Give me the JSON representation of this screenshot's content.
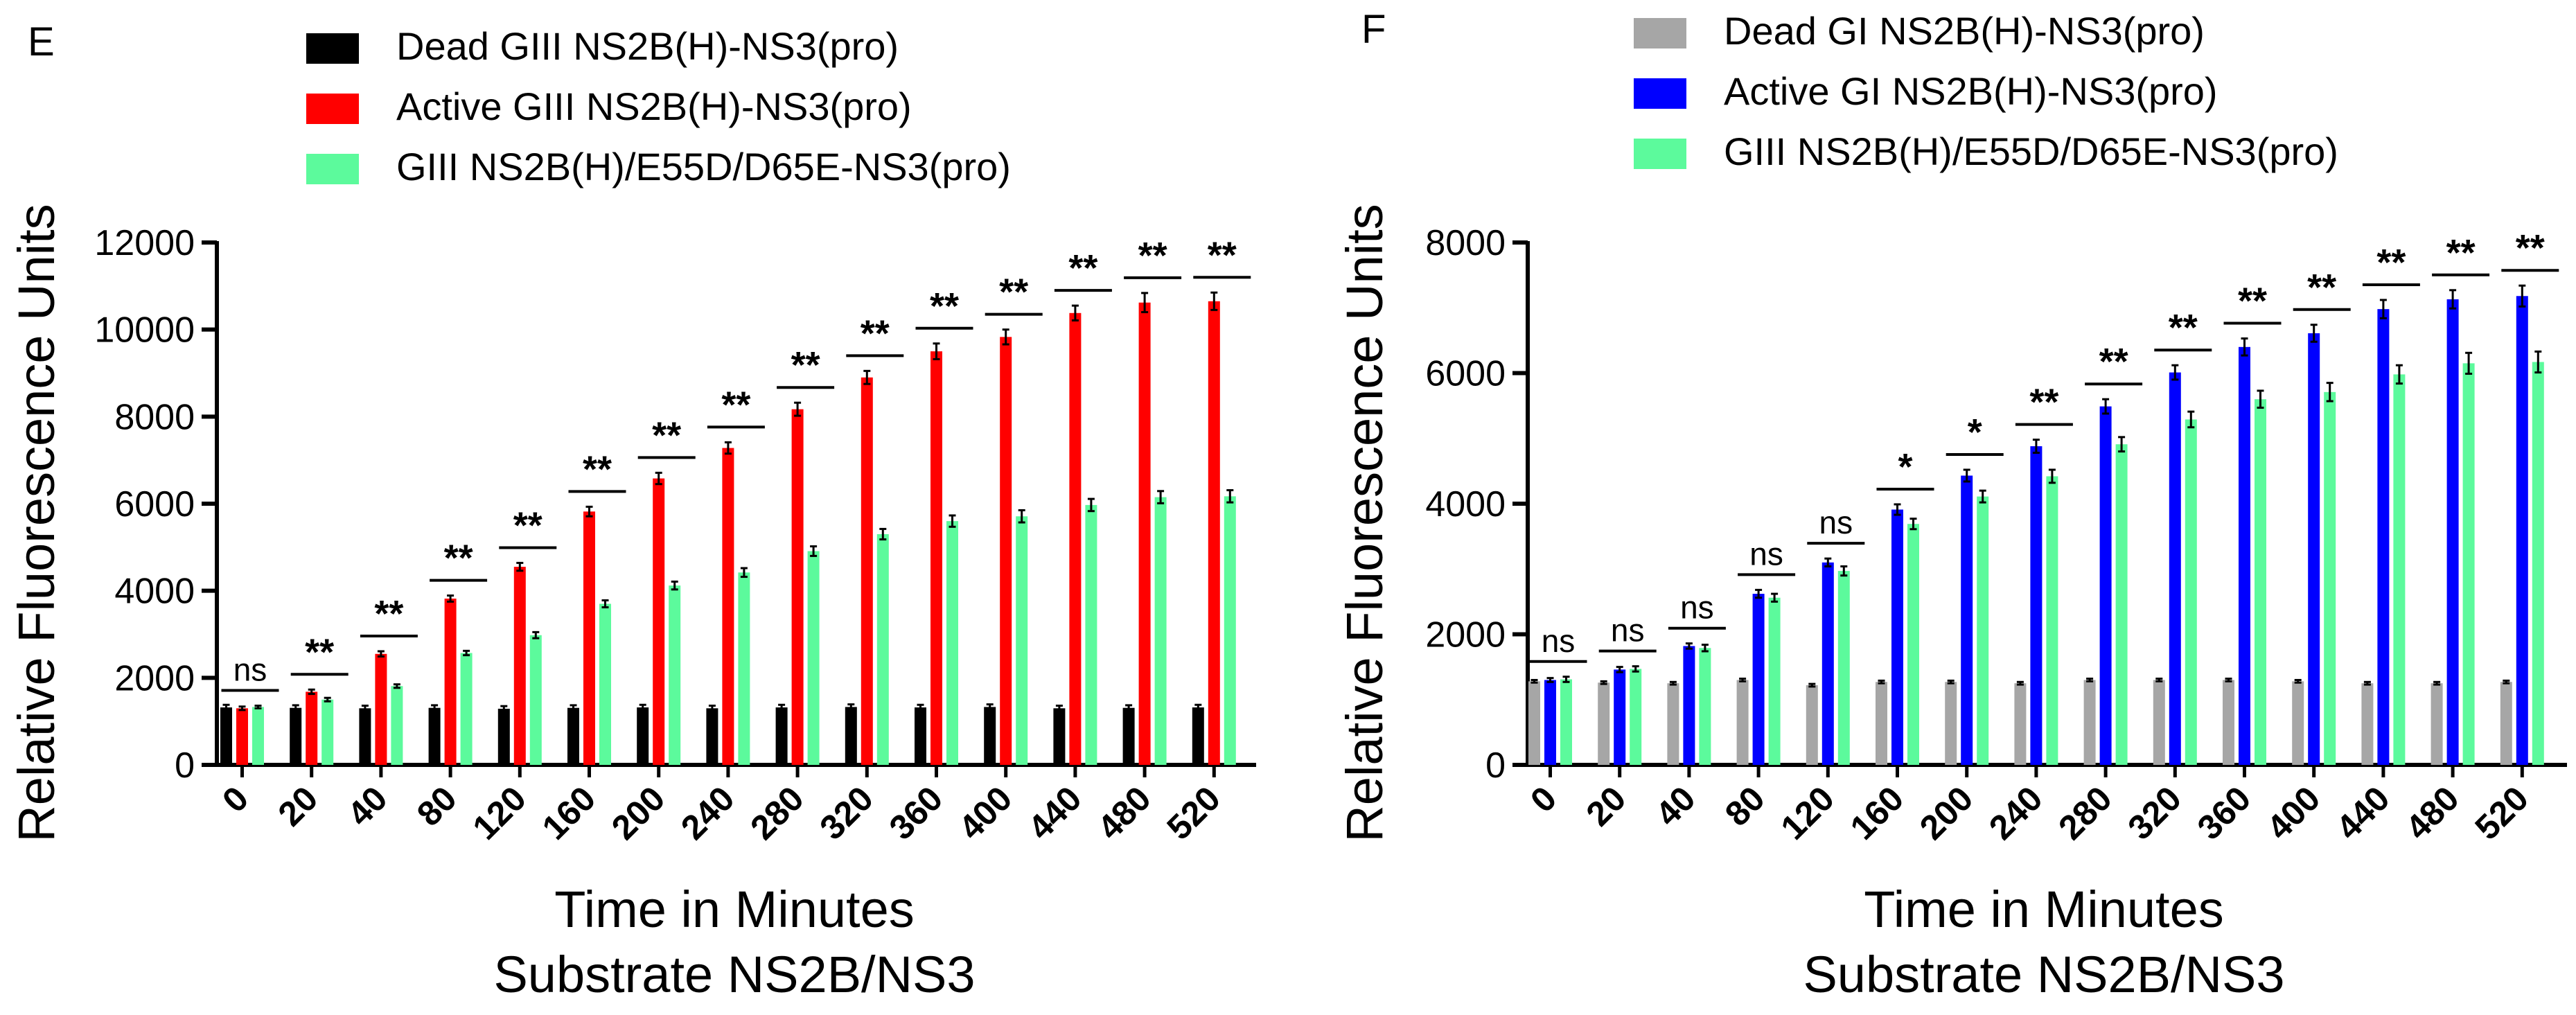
{
  "colors": {
    "dead_giii": "#000000",
    "active_giii": "#ff0000",
    "mutant": "#5cfa9c",
    "dead_gi": "#a6a6a6",
    "active_gi": "#0000ff"
  },
  "chart_data": [
    {
      "type": "bar",
      "panel_label": "E",
      "xlabel": "Time in Minutes",
      "xlabel2": "Substrate NS2B/NS3",
      "ylabel": "Relative Fluorescence Units",
      "ylim": [
        0,
        12000
      ],
      "yticks": [
        0,
        2000,
        4000,
        6000,
        8000,
        10000,
        12000
      ],
      "categories": [
        "0",
        "20",
        "40",
        "80",
        "120",
        "160",
        "200",
        "240",
        "280",
        "320",
        "360",
        "400",
        "440",
        "480",
        "520"
      ],
      "series": [
        {
          "name": "Dead GIII NS2B(H)-NS3(pro)",
          "color": "#000000",
          "values": [
            1320,
            1310,
            1300,
            1310,
            1290,
            1310,
            1320,
            1300,
            1320,
            1330,
            1320,
            1330,
            1300,
            1310,
            1320
          ],
          "errors": [
            60,
            60,
            60,
            60,
            60,
            60,
            60,
            60,
            60,
            60,
            60,
            60,
            60,
            60,
            60
          ]
        },
        {
          "name": "Active GIII NS2B(H)-NS3(pro)",
          "color": "#ff0000",
          "values": [
            1300,
            1680,
            2550,
            3820,
            4550,
            5820,
            6580,
            7280,
            8170,
            8900,
            9500,
            9830,
            10380,
            10620,
            10650
          ],
          "errors": [
            40,
            50,
            60,
            70,
            90,
            110,
            130,
            130,
            150,
            150,
            180,
            170,
            170,
            220,
            200
          ]
        },
        {
          "name": "GIII NS2B(H)/E55D/D65E-NS3(pro)",
          "color": "#5cfa9c",
          "values": [
            1330,
            1500,
            1810,
            2570,
            2980,
            3700,
            4120,
            4420,
            4910,
            5300,
            5600,
            5710,
            5970,
            6150,
            6170
          ],
          "errors": [
            30,
            40,
            40,
            50,
            70,
            80,
            90,
            100,
            110,
            120,
            130,
            140,
            140,
            140,
            140
          ]
        }
      ],
      "significance": [
        "ns",
        "**",
        "**",
        "**",
        "**",
        "**",
        "**",
        "**",
        "**",
        "**",
        "**",
        "**",
        "**",
        "**",
        "**"
      ]
    },
    {
      "type": "bar",
      "panel_label": "F",
      "xlabel": "Time in Minutes",
      "xlabel2": "Substrate NS2B/NS3",
      "ylabel": "Relative Fluorescence Units",
      "ylim": [
        0,
        8000
      ],
      "yticks": [
        0,
        2000,
        4000,
        6000,
        8000
      ],
      "categories": [
        "0",
        "20",
        "40",
        "80",
        "120",
        "160",
        "200",
        "240",
        "280",
        "320",
        "360",
        "400",
        "440",
        "480",
        "520"
      ],
      "series": [
        {
          "name": "Dead GI NS2B(H)-NS3(pro)",
          "color": "#a6a6a6",
          "values": [
            1280,
            1260,
            1250,
            1300,
            1220,
            1270,
            1270,
            1250,
            1300,
            1300,
            1300,
            1280,
            1250,
            1250,
            1270
          ],
          "errors": [
            20,
            20,
            20,
            20,
            20,
            20,
            20,
            20,
            20,
            20,
            20,
            20,
            20,
            20,
            20
          ]
        },
        {
          "name": "Active GI NS2B(H)-NS3(pro)",
          "color": "#0000ff",
          "values": [
            1300,
            1460,
            1820,
            2620,
            3100,
            3910,
            4430,
            4880,
            5490,
            6010,
            6400,
            6610,
            6980,
            7130,
            7180
          ],
          "errors": [
            30,
            40,
            40,
            60,
            60,
            80,
            90,
            100,
            110,
            110,
            130,
            130,
            140,
            140,
            160
          ]
        },
        {
          "name": "GIII NS2B(H)/E55D/D65E-NS3(pro)",
          "color": "#5cfa9c",
          "values": [
            1310,
            1470,
            1790,
            2560,
            2970,
            3690,
            4110,
            4420,
            4910,
            5290,
            5600,
            5710,
            5980,
            6150,
            6170
          ],
          "errors": [
            40,
            40,
            50,
            60,
            70,
            80,
            90,
            100,
            110,
            120,
            130,
            140,
            140,
            160,
            160
          ]
        }
      ],
      "significance": [
        "ns",
        "ns",
        "ns",
        "ns",
        "ns",
        "*",
        "*",
        "**",
        "**",
        "**",
        "**",
        "**",
        "**",
        "**",
        "**"
      ]
    }
  ]
}
